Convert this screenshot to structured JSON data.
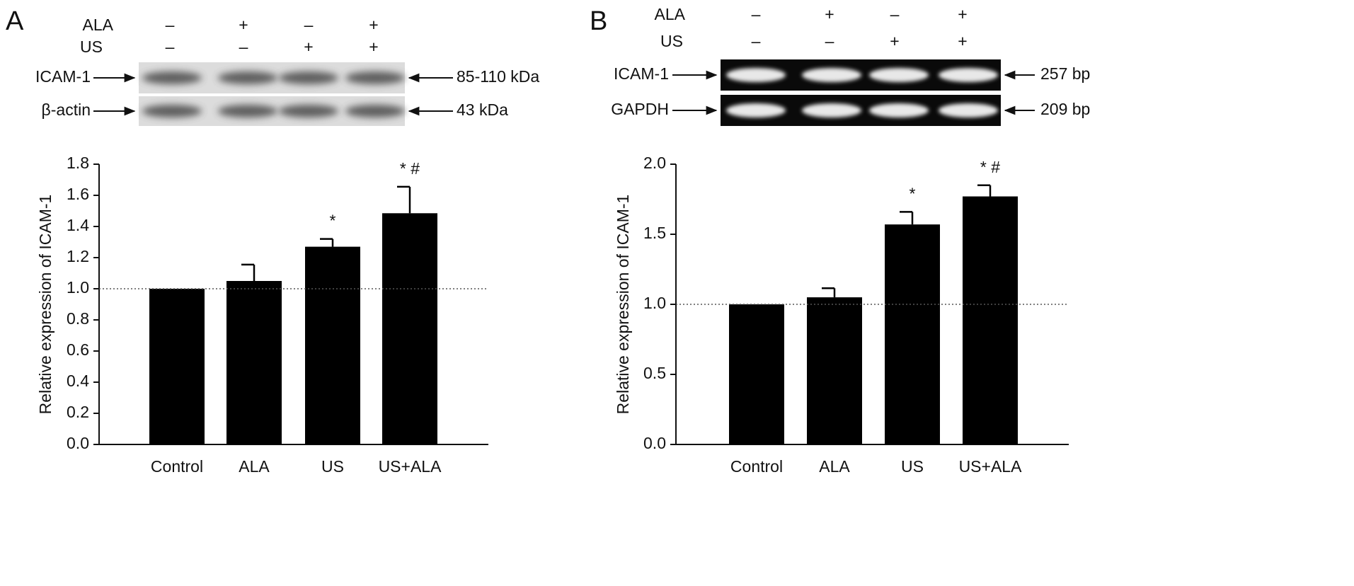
{
  "chart_data": [
    {
      "type": "bar",
      "panel_label": "A",
      "conditions": [
        {
          "name": "ALA",
          "signs": [
            "–",
            "+",
            "–",
            "+"
          ]
        },
        {
          "name": "US",
          "signs": [
            "–",
            "–",
            "+",
            "+"
          ]
        }
      ],
      "blot_rows": [
        {
          "name": "ICAM-1",
          "size": "85-110 kDa"
        },
        {
          "name": "β-actin",
          "size": "43 kDa"
        }
      ],
      "y_label": "Relative expression of ICAM-1",
      "categories": [
        "Control",
        "ALA",
        "US",
        "US+ALA"
      ],
      "values": [
        1.0,
        1.05,
        1.27,
        1.485
      ],
      "errors": [
        0,
        0.105,
        0.05,
        0.17
      ],
      "annotations": [
        null,
        null,
        "*",
        "* #"
      ],
      "color": "#000000",
      "reference_line": 1,
      "ylim": [
        0,
        1.8
      ],
      "yticks": [
        {
          "value": 0,
          "label": "0.0"
        },
        0.2,
        0.4,
        0.6,
        0.8,
        {
          "value": 1,
          "label": "1.0"
        },
        1.2,
        1.4,
        1.6,
        1.8
      ]
    },
    {
      "type": "bar",
      "panel_label": "B",
      "conditions": [
        {
          "name": "ALA",
          "signs": [
            "–",
            "+",
            "–",
            "+"
          ]
        },
        {
          "name": "US",
          "signs": [
            "–",
            "–",
            "+",
            "+"
          ]
        }
      ],
      "blot_rows": [
        {
          "name": "ICAM-1",
          "size": "257 bp"
        },
        {
          "name": "GAPDH",
          "size": "209 bp"
        }
      ],
      "y_label": "Relative expression of ICAM-1",
      "categories": [
        "Control",
        "ALA",
        "US",
        "US+ALA"
      ],
      "values": [
        1.0,
        1.05,
        1.57,
        1.77
      ],
      "errors": [
        0,
        0.065,
        0.09,
        0.08
      ],
      "annotations": [
        null,
        null,
        "*",
        "* #"
      ],
      "color": "#000000",
      "reference_line": 1,
      "ylim": [
        0,
        2.0
      ],
      "yticks": [
        {
          "value": 0,
          "label": "0.0"
        },
        0.5,
        {
          "value": 1,
          "label": "1.0"
        },
        1.5,
        {
          "value": 2,
          "label": "2.0"
        }
      ]
    }
  ]
}
